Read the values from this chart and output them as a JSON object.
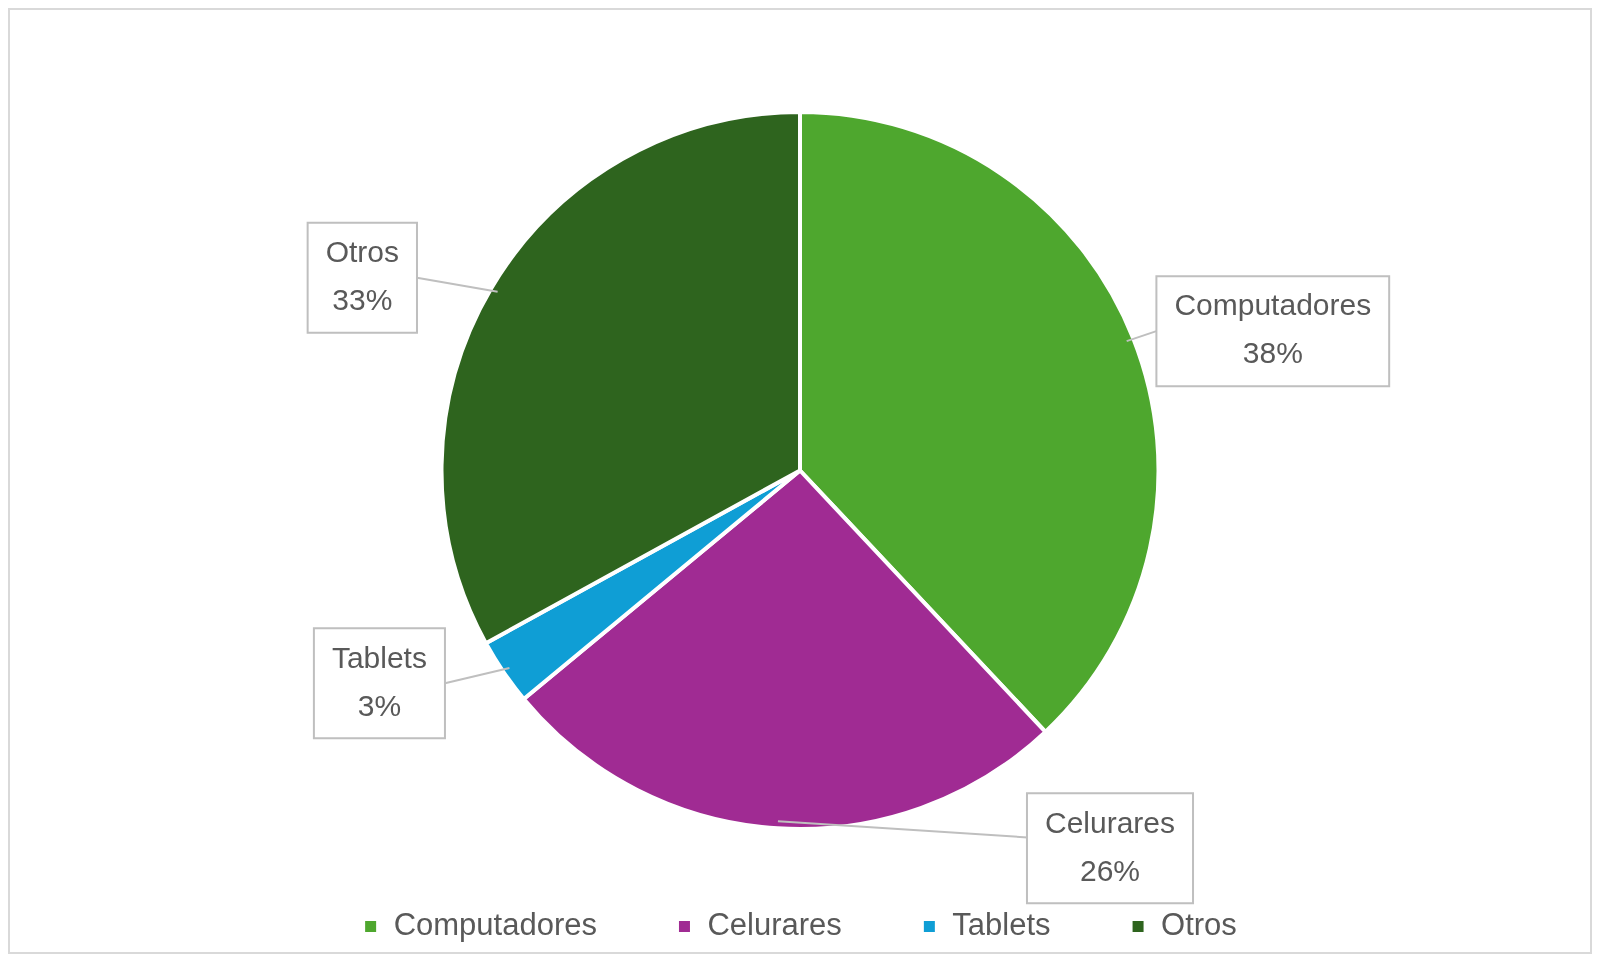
{
  "chart_data": {
    "type": "pie",
    "categories": [
      "Computadores",
      "Celurares",
      "Tablets",
      "Otros"
    ],
    "values": [
      38,
      26,
      3,
      33
    ],
    "value_labels": [
      "38%",
      "26%",
      "3%",
      "33%"
    ],
    "colors": [
      "#4ea72e",
      "#a02b93",
      "#0f9ed5",
      "#2e641e"
    ],
    "legend": "bottom"
  }
}
